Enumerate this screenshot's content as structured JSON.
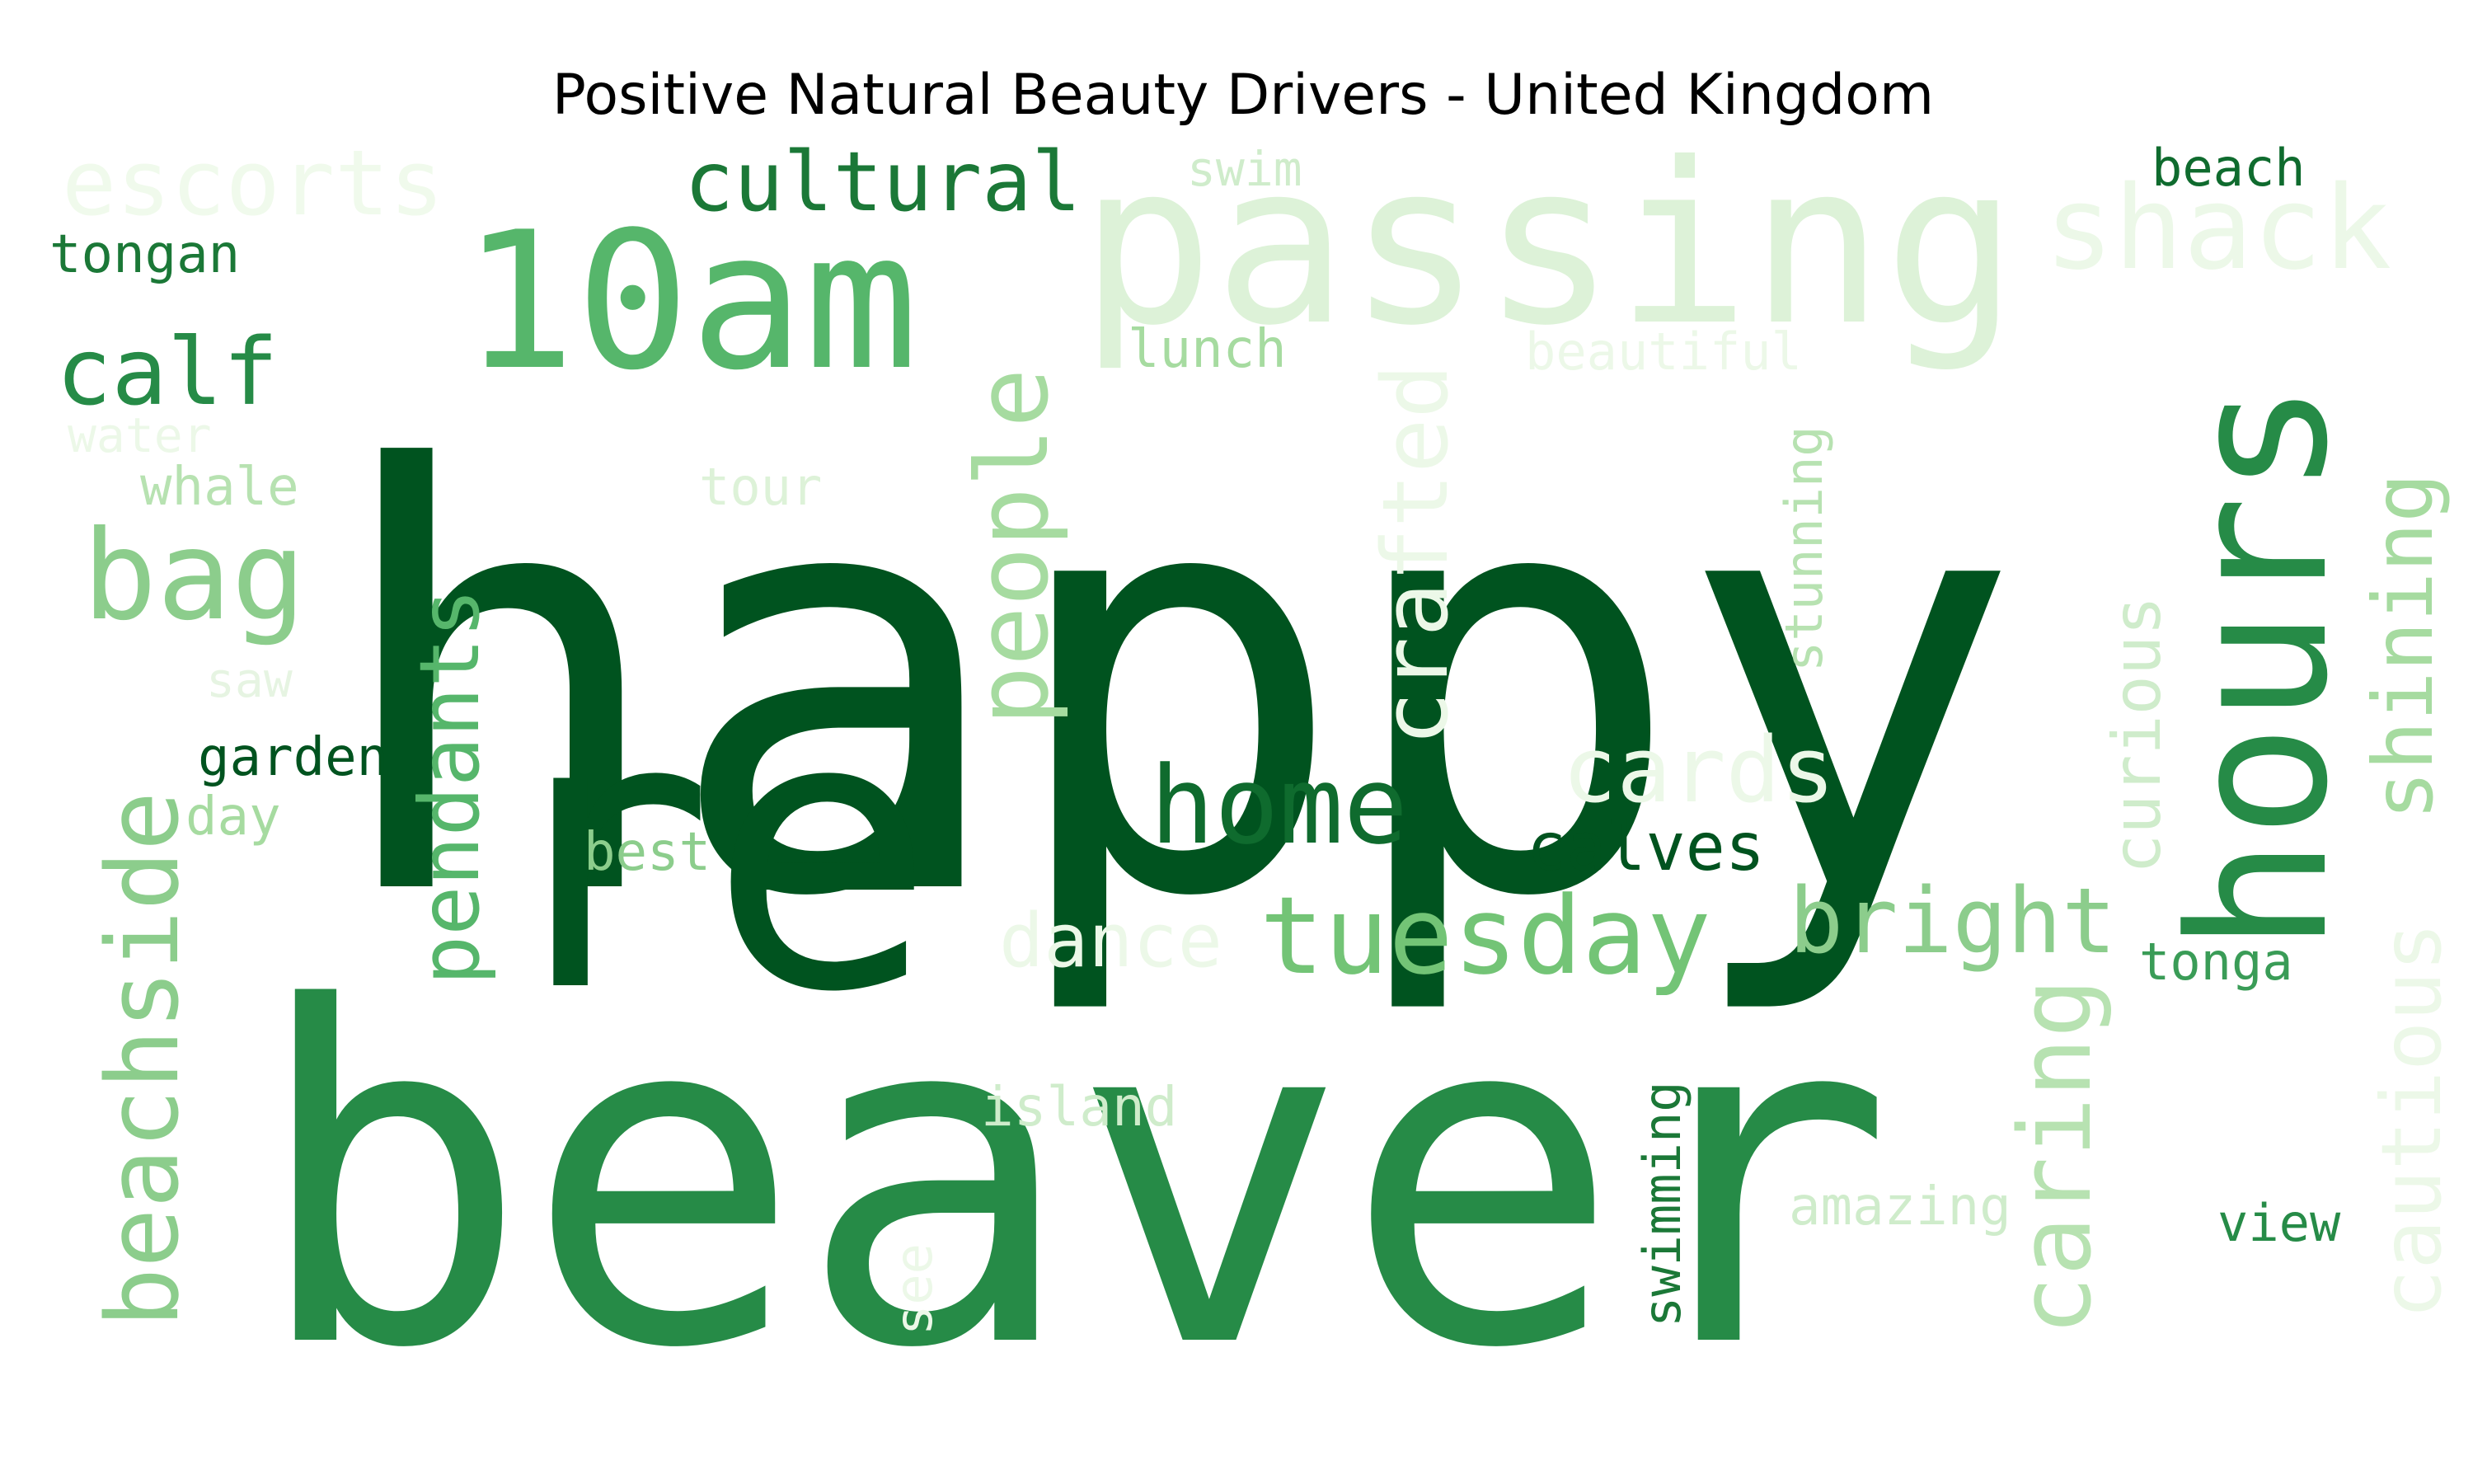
{
  "title": "Positive Natural Beauty Drivers - United Kingdom",
  "colors": {
    "darkest": "#00531f",
    "dark": "#1b7837",
    "medium": "#268b47",
    "mediumLight": "#4fb469",
    "light": "#8ccd8c",
    "lighter": "#b7e2b1",
    "lightest": "#ddf2d8",
    "faint": "#ecf8e8"
  },
  "words": [
    {
      "text": "happy",
      "color": "#00531f"
    },
    {
      "text": "beaver",
      "color": "#268b47"
    },
    {
      "text": "re",
      "color": "#00531f"
    },
    {
      "text": "passing",
      "color": "#ddf2d8"
    },
    {
      "text": "10am",
      "color": "#56b66b"
    },
    {
      "text": "hours",
      "color": "#268b47"
    },
    {
      "text": "shack",
      "color": "#ecf8e8"
    },
    {
      "text": "cultural",
      "color": "#1b7837"
    },
    {
      "text": "escorts",
      "color": "#f0faec"
    },
    {
      "text": "tongan",
      "color": "#1b7837"
    },
    {
      "text": "swim",
      "color": "#cfeccb"
    },
    {
      "text": "beach",
      "color": "#0f6b2e"
    },
    {
      "text": "calf",
      "color": "#268b47"
    },
    {
      "text": "lunch",
      "color": "#a6dba0"
    },
    {
      "text": "beautiful",
      "color": "#ecf8e8"
    },
    {
      "text": "water",
      "color": "#ecf8e8"
    },
    {
      "text": "whale",
      "color": "#b7e2b1"
    },
    {
      "text": "tour",
      "color": "#ddf2d8"
    },
    {
      "text": "bag",
      "color": "#8ccd8c"
    },
    {
      "text": "people",
      "color": "#a6dba0"
    },
    {
      "text": "crafted",
      "color": "#ecf8e8"
    },
    {
      "text": "stunning",
      "color": "#b7e2b1"
    },
    {
      "text": "shining",
      "color": "#a6dba0"
    },
    {
      "text": "saw",
      "color": "#e6f4e2"
    },
    {
      "text": "pendants",
      "color": "#56b66b"
    },
    {
      "text": "beachside",
      "color": "#8ccd8c"
    },
    {
      "text": "garden",
      "color": "#00531f"
    },
    {
      "text": "day",
      "color": "#a6dba0"
    },
    {
      "text": "home",
      "color": "#0f6b2e"
    },
    {
      "text": "cards",
      "color": "#ecf8e8"
    },
    {
      "text": "curious",
      "color": "#cfeccb"
    },
    {
      "text": "calves",
      "color": "#00531f"
    },
    {
      "text": "best",
      "color": "#8ccd8c"
    },
    {
      "text": "tuesday",
      "color": "#73c476"
    },
    {
      "text": "bright",
      "color": "#8ccd8c"
    },
    {
      "text": "dance",
      "color": "#ecf8e8"
    },
    {
      "text": "tonga",
      "color": "#3a9c57"
    },
    {
      "text": "cautious",
      "color": "#ecf8e8"
    },
    {
      "text": "caring",
      "color": "#b7e2b1"
    },
    {
      "text": "island",
      "color": "#cfeccb"
    },
    {
      "text": "swimming",
      "color": "#1b7837"
    },
    {
      "text": "amazing",
      "color": "#cfeccb"
    },
    {
      "text": "view",
      "color": "#268b47"
    },
    {
      "text": "see",
      "color": "#ecf8e8"
    }
  ]
}
